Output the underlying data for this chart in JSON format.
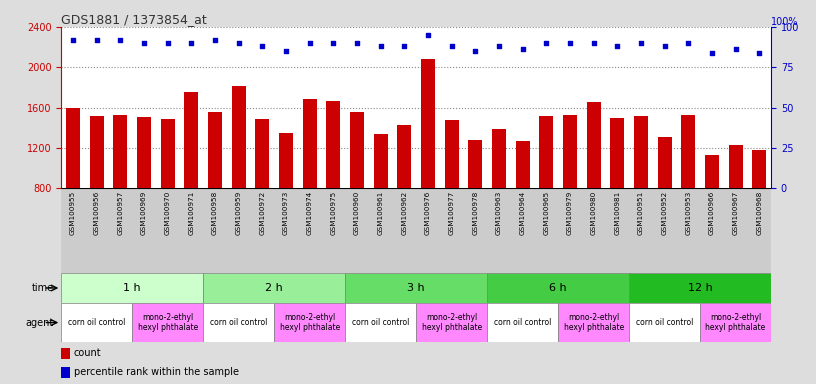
{
  "title": "GDS1881 / 1373854_at",
  "samples": [
    "GSM100955",
    "GSM100956",
    "GSM100957",
    "GSM100969",
    "GSM100970",
    "GSM100971",
    "GSM100958",
    "GSM100959",
    "GSM100972",
    "GSM100973",
    "GSM100974",
    "GSM100975",
    "GSM100960",
    "GSM100961",
    "GSM100962",
    "GSM100976",
    "GSM100977",
    "GSM100978",
    "GSM100963",
    "GSM100964",
    "GSM100965",
    "GSM100979",
    "GSM100980",
    "GSM100981",
    "GSM100951",
    "GSM100952",
    "GSM100953",
    "GSM100966",
    "GSM100967",
    "GSM100968"
  ],
  "counts": [
    1600,
    1520,
    1530,
    1510,
    1490,
    1750,
    1560,
    1810,
    1490,
    1350,
    1680,
    1660,
    1560,
    1340,
    1430,
    2080,
    1480,
    1280,
    1390,
    1270,
    1520,
    1530,
    1650,
    1500,
    1520,
    1310,
    1530,
    1130,
    1230,
    1180
  ],
  "percentiles": [
    92,
    92,
    92,
    90,
    90,
    90,
    92,
    90,
    88,
    85,
    90,
    90,
    90,
    88,
    88,
    95,
    88,
    85,
    88,
    86,
    90,
    90,
    90,
    88,
    90,
    88,
    90,
    84,
    86,
    84
  ],
  "bar_color": "#cc0000",
  "dot_color": "#0000cc",
  "ymin": 800,
  "ymax": 2400,
  "yticks_left": [
    800,
    1200,
    1600,
    2000,
    2400
  ],
  "yticks_right": [
    0,
    25,
    50,
    75,
    100
  ],
  "time_groups": [
    {
      "label": "1 h",
      "start": 0,
      "end": 6,
      "color": "#ccffcc"
    },
    {
      "label": "2 h",
      "start": 6,
      "end": 12,
      "color": "#99ee99"
    },
    {
      "label": "3 h",
      "start": 12,
      "end": 18,
      "color": "#66dd66"
    },
    {
      "label": "6 h",
      "start": 18,
      "end": 24,
      "color": "#44cc44"
    },
    {
      "label": "12 h",
      "start": 24,
      "end": 30,
      "color": "#22bb22"
    }
  ],
  "agent_groups": [
    {
      "label": "corn oil control",
      "start": 0,
      "end": 3,
      "color": "#ffffff"
    },
    {
      "label": "mono-2-ethyl\nhexyl phthalate",
      "start": 3,
      "end": 6,
      "color": "#ff88ff"
    },
    {
      "label": "corn oil control",
      "start": 6,
      "end": 9,
      "color": "#ffffff"
    },
    {
      "label": "mono-2-ethyl\nhexyl phthalate",
      "start": 9,
      "end": 12,
      "color": "#ff88ff"
    },
    {
      "label": "corn oil control",
      "start": 12,
      "end": 15,
      "color": "#ffffff"
    },
    {
      "label": "mono-2-ethyl\nhexyl phthalate",
      "start": 15,
      "end": 18,
      "color": "#ff88ff"
    },
    {
      "label": "corn oil control",
      "start": 18,
      "end": 21,
      "color": "#ffffff"
    },
    {
      "label": "mono-2-ethyl\nhexyl phthalate",
      "start": 21,
      "end": 24,
      "color": "#ff88ff"
    },
    {
      "label": "corn oil control",
      "start": 24,
      "end": 27,
      "color": "#ffffff"
    },
    {
      "label": "mono-2-ethyl\nhexyl phthalate",
      "start": 27,
      "end": 30,
      "color": "#ff88ff"
    }
  ],
  "bg_color": "#dddddd",
  "plot_bg": "#ffffff",
  "xlabels_bg": "#cccccc",
  "axis_color_left": "#cc0000",
  "axis_color_right": "#0000cc",
  "title_color": "#333333",
  "legend_items": [
    {
      "label": "count",
      "color": "#cc0000"
    },
    {
      "label": "percentile rank within the sample",
      "color": "#0000cc"
    }
  ]
}
